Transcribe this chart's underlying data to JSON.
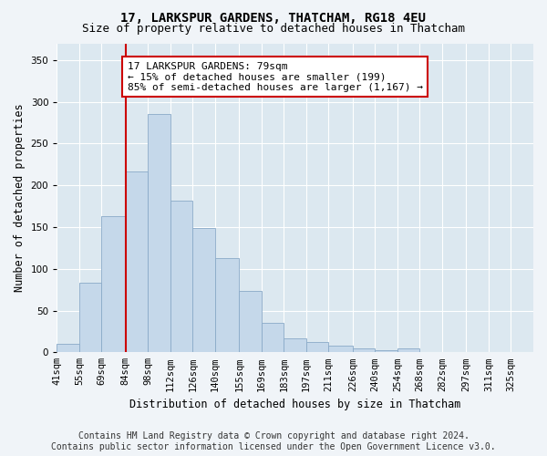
{
  "title": "17, LARKSPUR GARDENS, THATCHAM, RG18 4EU",
  "subtitle": "Size of property relative to detached houses in Thatcham",
  "xlabel": "Distribution of detached houses by size in Thatcham",
  "ylabel": "Number of detached properties",
  "footer_line1": "Contains HM Land Registry data © Crown copyright and database right 2024.",
  "footer_line2": "Contains public sector information licensed under the Open Government Licence v3.0.",
  "bar_labels": [
    "41sqm",
    "55sqm",
    "69sqm",
    "84sqm",
    "98sqm",
    "112sqm",
    "126sqm",
    "140sqm",
    "155sqm",
    "169sqm",
    "183sqm",
    "197sqm",
    "211sqm",
    "226sqm",
    "240sqm",
    "254sqm",
    "268sqm",
    "282sqm",
    "297sqm",
    "311sqm",
    "325sqm"
  ],
  "bar_heights": [
    10,
    83,
    163,
    217,
    285,
    182,
    149,
    113,
    74,
    35,
    17,
    12,
    8,
    5,
    2,
    5,
    0,
    0,
    0,
    0,
    0
  ],
  "bin_edges": [
    41,
    55,
    69,
    84,
    98,
    112,
    126,
    140,
    155,
    169,
    183,
    197,
    211,
    226,
    240,
    254,
    268,
    282,
    297,
    311,
    325,
    339
  ],
  "bar_color": "#c5d8ea",
  "bar_edge_color": "#8aaac8",
  "vline_x": 84,
  "vline_color": "#cc0000",
  "annotation_text": "17 LARKSPUR GARDENS: 79sqm\n← 15% of detached houses are smaller (199)\n85% of semi-detached houses are larger (1,167) →",
  "annotation_box_color": "#ffffff",
  "annotation_border_color": "#cc0000",
  "ylim": [
    0,
    370
  ],
  "xlim": [
    41,
    339
  ],
  "yticks": [
    0,
    50,
    100,
    150,
    200,
    250,
    300,
    350
  ],
  "background_color": "#f0f4f8",
  "plot_bg_color": "#dce8f0",
  "grid_color": "#ffffff",
  "title_fontsize": 10,
  "subtitle_fontsize": 9,
  "axis_label_fontsize": 8.5,
  "tick_fontsize": 7.5,
  "annotation_fontsize": 8,
  "footer_fontsize": 7
}
